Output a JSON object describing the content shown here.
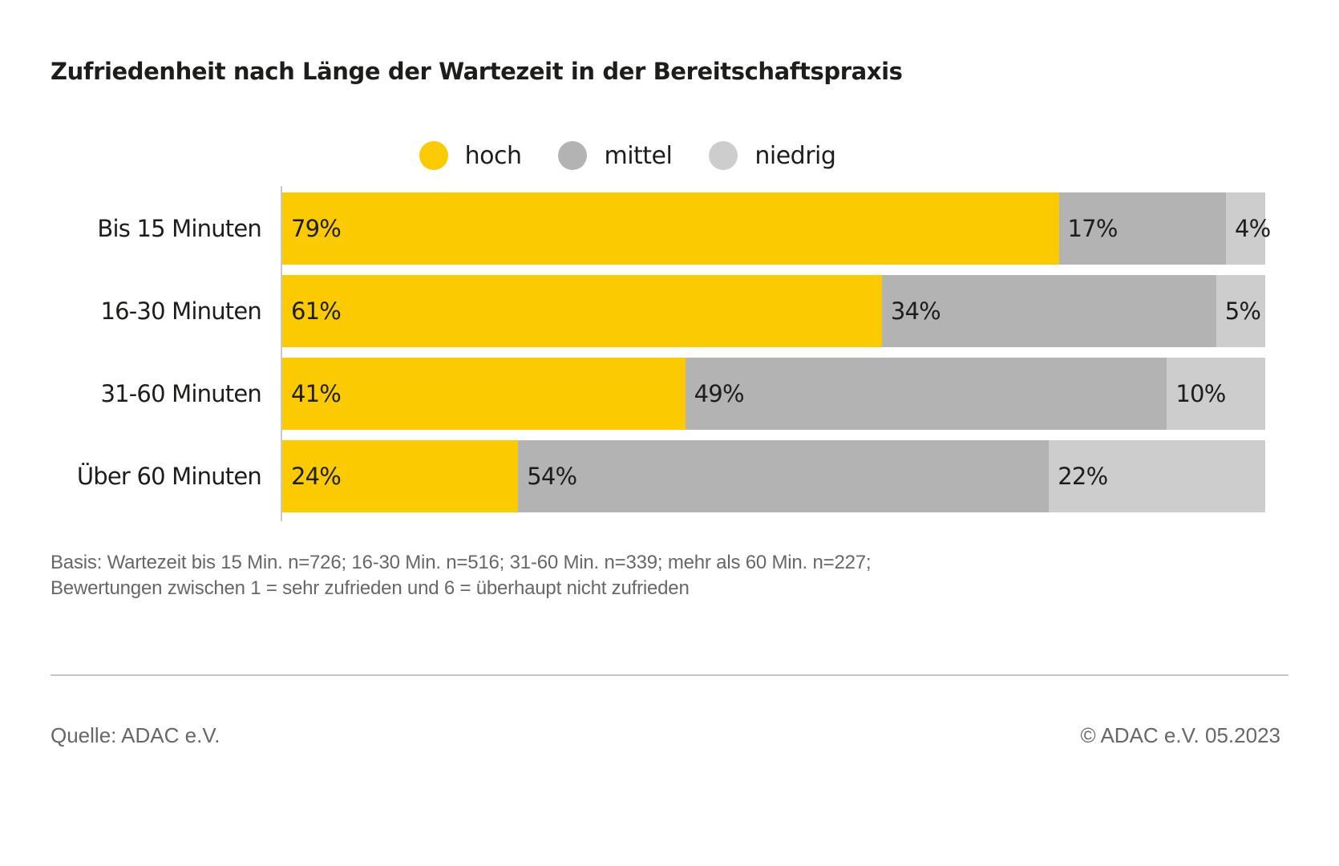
{
  "title": "Zufriedenheit nach Länge der Wartezeit in der Bereitschaftspraxis",
  "colors": {
    "hoch": "#fcca00",
    "mittel": "#b3b3b3",
    "niedrig": "#cdcdcd",
    "text_dark": "#1d1d1b",
    "text_gray": "#676767",
    "axis_line": "#c9c9c9",
    "divider": "#c6c6c6"
  },
  "legend": {
    "items": [
      {
        "label": "hoch",
        "color": "#fcca00"
      },
      {
        "label": "mittel",
        "color": "#b3b3b3"
      },
      {
        "label": "niedrig",
        "color": "#cdcdcd"
      }
    ]
  },
  "chart_data": {
    "type": "bar",
    "orientation": "horizontal",
    "stacked": true,
    "title": "Zufriedenheit nach Länge der Wartezeit in der Bereitschaftspraxis",
    "categories": [
      "Bis 15 Minuten",
      "16-30 Minuten",
      "31-60 Minuten",
      "Über 60 Minuten"
    ],
    "series": [
      {
        "name": "hoch",
        "color": "#fcca00",
        "values": [
          79,
          61,
          41,
          24
        ]
      },
      {
        "name": "mittel",
        "color": "#b3b3b3",
        "values": [
          17,
          34,
          49,
          54
        ]
      },
      {
        "name": "niedrig",
        "color": "#cdcdcd",
        "values": [
          4,
          5,
          10,
          22
        ]
      }
    ],
    "value_suffix": "%",
    "xlim": [
      0,
      100
    ],
    "legend_position": "top",
    "grid": false
  },
  "footnote": {
    "line1": "Basis: Wartezeit bis 15 Min. n=726; 16-30 Min. n=516; 31-60 Min. n=339; mehr als 60 Min. n=227;",
    "line2": "Bewertungen zwischen 1 = sehr zufrieden und 6 = überhaupt nicht zufrieden"
  },
  "footer": {
    "source": "Quelle: ADAC e.V.",
    "copyright": "© ADAC e.V. 05.2023"
  }
}
